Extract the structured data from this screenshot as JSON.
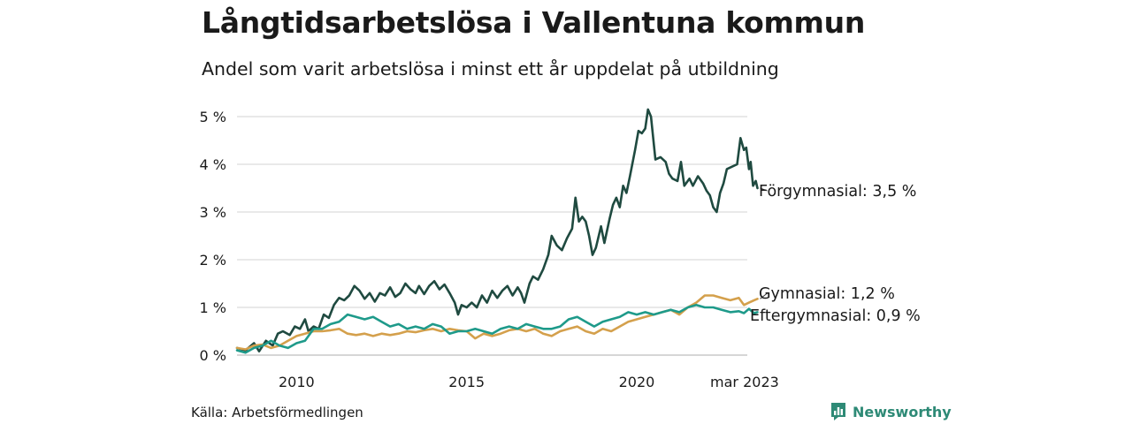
{
  "title": "Långtidsarbetslösa i Vallentuna kommun",
  "subtitle": "Andel som varit arbetslösa i minst ett år uppdelat på utbildning",
  "source": "Källa: Arbetsförmedlingen",
  "brand": {
    "name": "Newsworthy",
    "icon": "newsworthy-logo-icon",
    "color": "#2e8a76"
  },
  "chart_data": {
    "type": "line",
    "xlim": [
      2008.25,
      2023.25
    ],
    "ylim": [
      0,
      5
    ],
    "grid": true,
    "legend": "direct-labels-right",
    "x_ticks": [
      {
        "value": 2010,
        "label": "2010"
      },
      {
        "value": 2015,
        "label": "2015"
      },
      {
        "value": 2020,
        "label": "2020"
      },
      {
        "value": 2023.17,
        "label": "mar 2023"
      }
    ],
    "y_ticks": [
      {
        "value": 0,
        "label": "0 %"
      },
      {
        "value": 1,
        "label": "1 %"
      },
      {
        "value": 2,
        "label": "2 %"
      },
      {
        "value": 3,
        "label": "3 %"
      },
      {
        "value": 4,
        "label": "4 %"
      },
      {
        "value": 5,
        "label": "5 %"
      }
    ],
    "series": [
      {
        "name": "Förgymnasial",
        "label": "Förgymnasial: 3,5 %",
        "color": "#1f4a40",
        "points": [
          [
            2008.25,
            0.15
          ],
          [
            2008.5,
            0.1
          ],
          [
            2008.75,
            0.25
          ],
          [
            2008.9,
            0.08
          ],
          [
            2009.1,
            0.3
          ],
          [
            2009.3,
            0.2
          ],
          [
            2009.45,
            0.45
          ],
          [
            2009.6,
            0.5
          ],
          [
            2009.8,
            0.42
          ],
          [
            2009.95,
            0.6
          ],
          [
            2010.1,
            0.55
          ],
          [
            2010.25,
            0.75
          ],
          [
            2010.35,
            0.5
          ],
          [
            2010.5,
            0.6
          ],
          [
            2010.65,
            0.55
          ],
          [
            2010.8,
            0.85
          ],
          [
            2010.95,
            0.78
          ],
          [
            2011.1,
            1.05
          ],
          [
            2011.25,
            1.2
          ],
          [
            2011.4,
            1.15
          ],
          [
            2011.55,
            1.25
          ],
          [
            2011.7,
            1.45
          ],
          [
            2011.85,
            1.35
          ],
          [
            2012.0,
            1.18
          ],
          [
            2012.15,
            1.3
          ],
          [
            2012.3,
            1.12
          ],
          [
            2012.45,
            1.3
          ],
          [
            2012.6,
            1.25
          ],
          [
            2012.75,
            1.42
          ],
          [
            2012.9,
            1.22
          ],
          [
            2013.05,
            1.3
          ],
          [
            2013.2,
            1.5
          ],
          [
            2013.35,
            1.38
          ],
          [
            2013.5,
            1.3
          ],
          [
            2013.6,
            1.45
          ],
          [
            2013.75,
            1.28
          ],
          [
            2013.9,
            1.45
          ],
          [
            2014.05,
            1.55
          ],
          [
            2014.2,
            1.38
          ],
          [
            2014.35,
            1.48
          ],
          [
            2014.5,
            1.3
          ],
          [
            2014.65,
            1.1
          ],
          [
            2014.75,
            0.85
          ],
          [
            2014.85,
            1.05
          ],
          [
            2015.0,
            1.0
          ],
          [
            2015.15,
            1.1
          ],
          [
            2015.3,
            1.0
          ],
          [
            2015.45,
            1.25
          ],
          [
            2015.6,
            1.1
          ],
          [
            2015.75,
            1.35
          ],
          [
            2015.9,
            1.2
          ],
          [
            2016.05,
            1.35
          ],
          [
            2016.2,
            1.45
          ],
          [
            2016.35,
            1.25
          ],
          [
            2016.5,
            1.42
          ],
          [
            2016.6,
            1.3
          ],
          [
            2016.7,
            1.1
          ],
          [
            2016.85,
            1.5
          ],
          [
            2016.95,
            1.65
          ],
          [
            2017.1,
            1.58
          ],
          [
            2017.25,
            1.8
          ],
          [
            2017.4,
            2.1
          ],
          [
            2017.5,
            2.5
          ],
          [
            2017.65,
            2.3
          ],
          [
            2017.8,
            2.2
          ],
          [
            2017.95,
            2.45
          ],
          [
            2018.1,
            2.65
          ],
          [
            2018.2,
            3.3
          ],
          [
            2018.3,
            2.8
          ],
          [
            2018.4,
            2.9
          ],
          [
            2018.5,
            2.8
          ],
          [
            2018.6,
            2.5
          ],
          [
            2018.7,
            2.1
          ],
          [
            2018.8,
            2.25
          ],
          [
            2018.95,
            2.7
          ],
          [
            2019.05,
            2.35
          ],
          [
            2019.2,
            2.85
          ],
          [
            2019.3,
            3.15
          ],
          [
            2019.4,
            3.3
          ],
          [
            2019.5,
            3.1
          ],
          [
            2019.6,
            3.55
          ],
          [
            2019.7,
            3.4
          ],
          [
            2019.8,
            3.75
          ],
          [
            2019.95,
            4.3
          ],
          [
            2020.05,
            4.7
          ],
          [
            2020.15,
            4.65
          ],
          [
            2020.25,
            4.75
          ],
          [
            2020.33,
            5.15
          ],
          [
            2020.42,
            5.0
          ],
          [
            2020.55,
            4.1
          ],
          [
            2020.7,
            4.15
          ],
          [
            2020.85,
            4.05
          ],
          [
            2020.95,
            3.8
          ],
          [
            2021.05,
            3.7
          ],
          [
            2021.2,
            3.65
          ],
          [
            2021.3,
            4.05
          ],
          [
            2021.4,
            3.55
          ],
          [
            2021.55,
            3.7
          ],
          [
            2021.65,
            3.55
          ],
          [
            2021.8,
            3.75
          ],
          [
            2021.95,
            3.6
          ],
          [
            2022.05,
            3.45
          ],
          [
            2022.15,
            3.35
          ],
          [
            2022.25,
            3.1
          ],
          [
            2022.35,
            3.0
          ],
          [
            2022.45,
            3.4
          ],
          [
            2022.55,
            3.6
          ],
          [
            2022.65,
            3.9
          ],
          [
            2022.8,
            3.95
          ],
          [
            2022.95,
            4.0
          ],
          [
            2023.05,
            4.55
          ],
          [
            2023.15,
            4.3
          ],
          [
            2023.22,
            4.35
          ],
          [
            2023.3,
            3.9
          ],
          [
            2023.35,
            4.05
          ],
          [
            2023.42,
            3.55
          ],
          [
            2023.5,
            3.65
          ],
          [
            2023.55,
            3.5
          ]
        ]
      },
      {
        "name": "Gymnasial",
        "label": "Gymnasial: 1,2 %",
        "color": "#d4a04c",
        "points": [
          [
            2008.25,
            0.15
          ],
          [
            2008.5,
            0.12
          ],
          [
            2008.75,
            0.2
          ],
          [
            2009.0,
            0.22
          ],
          [
            2009.25,
            0.15
          ],
          [
            2009.5,
            0.2
          ],
          [
            2009.75,
            0.3
          ],
          [
            2010.0,
            0.4
          ],
          [
            2010.25,
            0.45
          ],
          [
            2010.5,
            0.5
          ],
          [
            2010.75,
            0.5
          ],
          [
            2011.0,
            0.52
          ],
          [
            2011.25,
            0.55
          ],
          [
            2011.5,
            0.45
          ],
          [
            2011.75,
            0.42
          ],
          [
            2012.0,
            0.45
          ],
          [
            2012.25,
            0.4
          ],
          [
            2012.5,
            0.45
          ],
          [
            2012.75,
            0.42
          ],
          [
            2013.0,
            0.45
          ],
          [
            2013.25,
            0.5
          ],
          [
            2013.5,
            0.48
          ],
          [
            2013.75,
            0.52
          ],
          [
            2014.0,
            0.55
          ],
          [
            2014.25,
            0.5
          ],
          [
            2014.5,
            0.55
          ],
          [
            2014.75,
            0.52
          ],
          [
            2015.0,
            0.5
          ],
          [
            2015.25,
            0.35
          ],
          [
            2015.5,
            0.45
          ],
          [
            2015.75,
            0.4
          ],
          [
            2016.0,
            0.45
          ],
          [
            2016.25,
            0.52
          ],
          [
            2016.5,
            0.55
          ],
          [
            2016.75,
            0.5
          ],
          [
            2017.0,
            0.55
          ],
          [
            2017.25,
            0.45
          ],
          [
            2017.5,
            0.4
          ],
          [
            2017.75,
            0.5
          ],
          [
            2018.0,
            0.55
          ],
          [
            2018.25,
            0.6
          ],
          [
            2018.5,
            0.5
          ],
          [
            2018.75,
            0.45
          ],
          [
            2019.0,
            0.55
          ],
          [
            2019.25,
            0.5
          ],
          [
            2019.5,
            0.6
          ],
          [
            2019.75,
            0.7
          ],
          [
            2020.0,
            0.75
          ],
          [
            2020.25,
            0.8
          ],
          [
            2020.5,
            0.85
          ],
          [
            2020.75,
            0.9
          ],
          [
            2021.0,
            0.95
          ],
          [
            2021.25,
            0.85
          ],
          [
            2021.5,
            1.0
          ],
          [
            2021.75,
            1.1
          ],
          [
            2022.0,
            1.25
          ],
          [
            2022.25,
            1.25
          ],
          [
            2022.5,
            1.2
          ],
          [
            2022.75,
            1.15
          ],
          [
            2023.0,
            1.2
          ],
          [
            2023.15,
            1.05
          ],
          [
            2023.3,
            1.1
          ],
          [
            2023.45,
            1.15
          ],
          [
            2023.55,
            1.18
          ]
        ]
      },
      {
        "name": "Eftergymnasial",
        "label": "Eftergymnasial: 0,9 %",
        "color": "#1e9a8a",
        "points": [
          [
            2008.25,
            0.1
          ],
          [
            2008.5,
            0.05
          ],
          [
            2008.75,
            0.15
          ],
          [
            2009.0,
            0.2
          ],
          [
            2009.25,
            0.3
          ],
          [
            2009.5,
            0.2
          ],
          [
            2009.75,
            0.15
          ],
          [
            2010.0,
            0.25
          ],
          [
            2010.25,
            0.3
          ],
          [
            2010.5,
            0.55
          ],
          [
            2010.75,
            0.55
          ],
          [
            2011.0,
            0.65
          ],
          [
            2011.25,
            0.7
          ],
          [
            2011.5,
            0.85
          ],
          [
            2011.75,
            0.8
          ],
          [
            2012.0,
            0.75
          ],
          [
            2012.25,
            0.8
          ],
          [
            2012.5,
            0.7
          ],
          [
            2012.75,
            0.6
          ],
          [
            2013.0,
            0.65
          ],
          [
            2013.25,
            0.55
          ],
          [
            2013.5,
            0.6
          ],
          [
            2013.75,
            0.55
          ],
          [
            2014.0,
            0.65
          ],
          [
            2014.25,
            0.6
          ],
          [
            2014.5,
            0.45
          ],
          [
            2014.75,
            0.5
          ],
          [
            2015.0,
            0.5
          ],
          [
            2015.25,
            0.55
          ],
          [
            2015.5,
            0.5
          ],
          [
            2015.75,
            0.45
          ],
          [
            2016.0,
            0.55
          ],
          [
            2016.25,
            0.6
          ],
          [
            2016.5,
            0.55
          ],
          [
            2016.75,
            0.65
          ],
          [
            2017.0,
            0.6
          ],
          [
            2017.25,
            0.55
          ],
          [
            2017.5,
            0.55
          ],
          [
            2017.75,
            0.6
          ],
          [
            2018.0,
            0.75
          ],
          [
            2018.25,
            0.8
          ],
          [
            2018.5,
            0.7
          ],
          [
            2018.75,
            0.6
          ],
          [
            2019.0,
            0.7
          ],
          [
            2019.25,
            0.75
          ],
          [
            2019.5,
            0.8
          ],
          [
            2019.75,
            0.9
          ],
          [
            2020.0,
            0.85
          ],
          [
            2020.25,
            0.9
          ],
          [
            2020.5,
            0.85
          ],
          [
            2020.75,
            0.9
          ],
          [
            2021.0,
            0.95
          ],
          [
            2021.25,
            0.9
          ],
          [
            2021.5,
            1.0
          ],
          [
            2021.75,
            1.05
          ],
          [
            2022.0,
            1.0
          ],
          [
            2022.25,
            1.0
          ],
          [
            2022.5,
            0.95
          ],
          [
            2022.75,
            0.9
          ],
          [
            2023.0,
            0.92
          ],
          [
            2023.15,
            0.88
          ],
          [
            2023.3,
            0.97
          ],
          [
            2023.45,
            0.88
          ],
          [
            2023.55,
            0.9
          ]
        ]
      }
    ]
  }
}
